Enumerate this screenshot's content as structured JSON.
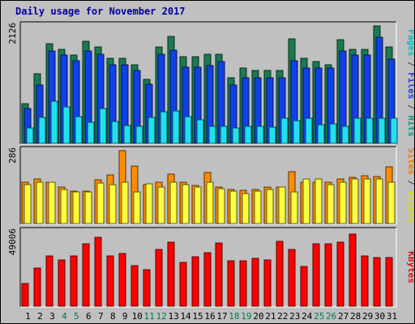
{
  "chart_data": {
    "type": "bar",
    "title": "Daily usage for November 2017",
    "categories": [
      "1",
      "2",
      "3",
      "4",
      "5",
      "6",
      "7",
      "8",
      "9",
      "10",
      "11",
      "12",
      "13",
      "14",
      "15",
      "16",
      "17",
      "18",
      "19",
      "20",
      "21",
      "22",
      "23",
      "24",
      "25",
      "26",
      "27",
      "28",
      "29",
      "30",
      "31"
    ],
    "weekend_days": [
      "4",
      "5",
      "11",
      "12",
      "18",
      "19",
      "25",
      "26"
    ],
    "panels": [
      {
        "id": "hits",
        "ytick": "2126",
        "ymax": 2126,
        "labels": [
          {
            "text": "Pages",
            "color": "#00c0c0"
          },
          {
            "text": " / ",
            "color": "#404040"
          },
          {
            "text": "Files",
            "color": "#2040e0"
          },
          {
            "text": " / ",
            "color": "#404040"
          },
          {
            "text": "Hits",
            "color": "#00a080"
          }
        ],
        "series": [
          {
            "name": "Hits",
            "color": "#1a7a50",
            "values": [
              700,
              1240,
              1760,
              1660,
              1560,
              1810,
              1710,
              1510,
              1510,
              1400,
              1140,
              1710,
              1890,
              1530,
              1530,
              1580,
              1580,
              1170,
              1330,
              1300,
              1300,
              1300,
              1860,
              1510,
              1450,
              1400,
              1840,
              1660,
              1660,
              2080,
              1710
            ]
          },
          {
            "name": "Files",
            "color": "#1040e8",
            "values": [
              620,
              1040,
              1640,
              1560,
              1460,
              1640,
              1580,
              1390,
              1390,
              1290,
              1050,
              1580,
              1650,
              1350,
              1350,
              1380,
              1450,
              1030,
              1160,
              1160,
              1160,
              1160,
              1460,
              1330,
              1330,
              1330,
              1640,
              1560,
              1560,
              1880,
              1500
            ]
          },
          {
            "name": "Pages",
            "color": "#20e0f0",
            "values": [
              280,
              460,
              740,
              650,
              480,
              370,
              620,
              390,
              320,
              300,
              460,
              560,
              580,
              480,
              420,
              300,
              300,
              280,
              300,
              300,
              290,
              440,
              400,
              450,
              330,
              340,
              300,
              440,
              440,
              440,
              440
            ]
          }
        ]
      },
      {
        "id": "visits",
        "ytick": "286",
        "ymax": 286,
        "labels": [
          {
            "text": "Sites",
            "color": "#f08000"
          },
          {
            "text": " / ",
            "color": "#404040"
          },
          {
            "text": "Visits",
            "color": "#e0e000"
          }
        ],
        "series": [
          {
            "name": "Visits",
            "color": "#ff8c00",
            "values": [
              160,
              170,
              160,
              140,
              125,
              125,
              168,
              186,
              280,
              220,
              150,
              160,
              190,
              160,
              145,
              195,
              140,
              130,
              128,
              132,
              140,
              140,
              198,
              160,
              160,
              160,
              170,
              178,
              182,
              180,
              218
            ]
          },
          {
            "name": "Sites",
            "color": "#ffff40",
            "values": [
              150,
              160,
              160,
              130,
              120,
              120,
              155,
              150,
              160,
              120,
              152,
              140,
              160,
              150,
              140,
              160,
              135,
              125,
              115,
              125,
              130,
              140,
              120,
              170,
              170,
              150,
              160,
              170,
              170,
              170,
              160
            ]
          }
        ]
      },
      {
        "id": "kbytes",
        "ytick": "49006",
        "ymax": 49006,
        "labels": [
          {
            "text": "KBytes",
            "color": "#e01010"
          }
        ],
        "series": [
          {
            "name": "KBytes",
            "color": "#ff0000",
            "values": [
              14500,
              24500,
              32500,
              29600,
              32200,
              40300,
              44100,
              32200,
              34100,
              26200,
              23600,
              36600,
              41200,
              28400,
              31800,
              34400,
              40700,
              29100,
              29400,
              30700,
              29500,
              41900,
              36500,
              25800,
              40400,
              40000,
              41200,
              46300,
              32300,
              31200,
              31200
            ]
          }
        ]
      }
    ]
  }
}
